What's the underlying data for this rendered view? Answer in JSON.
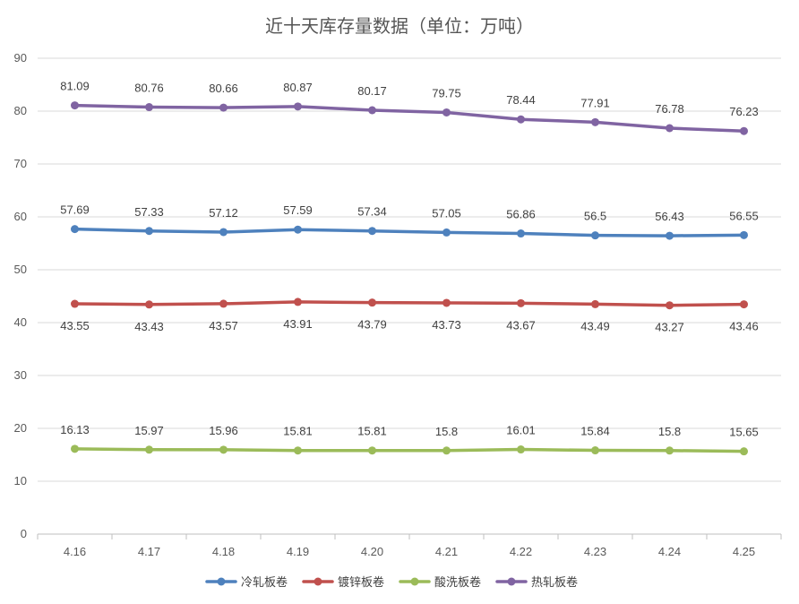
{
  "chart_data": {
    "type": "line",
    "title": "近十天库存量数据（单位：万吨）",
    "categories": [
      "4.16",
      "4.17",
      "4.18",
      "4.19",
      "4.20",
      "4.21",
      "4.22",
      "4.23",
      "4.24",
      "4.25"
    ],
    "ylim": [
      0,
      90
    ],
    "yticks": [
      0,
      10,
      20,
      30,
      40,
      50,
      60,
      70,
      80,
      90
    ],
    "grid": true,
    "legend_position": "bottom",
    "series": [
      {
        "name": "冷轧板卷",
        "color": "#4e81bd",
        "label_pos": "above",
        "values": [
          57.69,
          57.33,
          57.12,
          57.59,
          57.34,
          57.05,
          56.86,
          56.5,
          56.43,
          56.55
        ],
        "labels": [
          "57.69",
          "57.33",
          "57.12",
          "57.59",
          "57.34",
          "57.05",
          "56.86",
          "56.5",
          "56.43",
          "56.55"
        ]
      },
      {
        "name": "镀锌板卷",
        "color": "#c0504d",
        "label_pos": "below",
        "values": [
          43.55,
          43.43,
          43.57,
          43.91,
          43.79,
          43.73,
          43.67,
          43.49,
          43.27,
          43.46
        ],
        "labels": [
          "43.55",
          "43.43",
          "43.57",
          "43.91",
          "43.79",
          "43.73",
          "43.67",
          "43.49",
          "43.27",
          "43.46"
        ]
      },
      {
        "name": "酸洗板卷",
        "color": "#9bbb59",
        "label_pos": "above",
        "values": [
          16.13,
          15.97,
          15.96,
          15.81,
          15.81,
          15.8,
          16.01,
          15.84,
          15.8,
          15.65
        ],
        "labels": [
          "16.13",
          "15.97",
          "15.96",
          "15.81",
          "15.81",
          "15.8",
          "16.01",
          "15.84",
          "15.8",
          "15.65"
        ]
      },
      {
        "name": "热轧板卷",
        "color": "#8064a2",
        "label_pos": "above",
        "values": [
          81.09,
          80.76,
          80.66,
          80.87,
          80.17,
          79.75,
          78.44,
          77.91,
          76.78,
          76.23
        ],
        "labels": [
          "81.09",
          "80.76",
          "80.66",
          "80.87",
          "80.17",
          "79.75",
          "78.44",
          "77.91",
          "76.78",
          "76.23"
        ]
      }
    ]
  }
}
